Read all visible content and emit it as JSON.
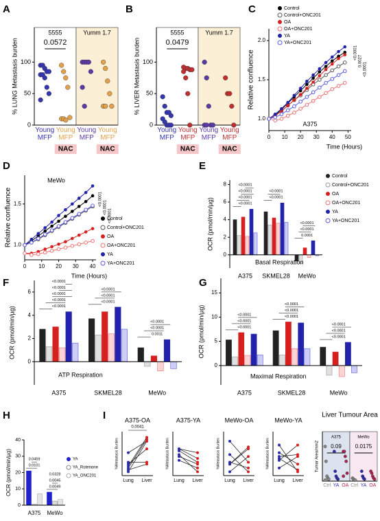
{
  "chart_data": [
    {
      "panel": "A",
      "type": "strip",
      "ylabel": "% LUNG Metastasis burden",
      "categories": [
        "Young MFP",
        "Young MFP",
        "Young MFP",
        "Young MFP"
      ],
      "colors": [
        "#3535b0",
        "#e3a04a",
        "#5a3aa5",
        "#e3a04a"
      ],
      "values": [
        [
          95,
          95,
          90,
          85,
          85,
          80,
          80,
          75,
          60,
          50,
          40
        ],
        [
          95,
          85,
          75,
          60,
          12,
          10,
          10,
          8
        ],
        [
          100,
          100,
          100,
          100,
          85,
          60,
          30
        ],
        [
          100,
          90,
          70,
          50,
          30,
          30,
          30
        ]
      ],
      "group_labels": [
        "5555",
        "Yumm 1.7"
      ],
      "shades": [
        "#ffffff",
        "#fbf0d5"
      ],
      "annotations": [
        "0.0572"
      ],
      "tags": [
        null,
        "NAC",
        null,
        "NAC"
      ],
      "ylim": [
        0,
        155
      ],
      "yticks": [
        0,
        50,
        100
      ]
    },
    {
      "panel": "B",
      "type": "strip",
      "ylabel": "% LIVER Metastasis burden",
      "categories": [
        "Young MFP",
        "Young MFP",
        "Young MFP",
        "Young MFP"
      ],
      "colors": [
        "#3535b0",
        "#c03030",
        "#5a3aa5",
        "#c03030"
      ],
      "values": [
        [
          45,
          30,
          20,
          20,
          15,
          10,
          5,
          0,
          0,
          0
        ],
        [
          92,
          90,
          90,
          88,
          88,
          85,
          75,
          50,
          0
        ],
        [
          100,
          75,
          30,
          0,
          0,
          0,
          0
        ],
        [
          75,
          50,
          50,
          30,
          0
        ]
      ],
      "group_labels": [
        "5555",
        "Yumm 1.7"
      ],
      "shades": [
        "#ffffff",
        "#fbf0d5"
      ],
      "annotations": [
        "0.0479"
      ],
      "tags": [
        null,
        "NAC",
        null,
        "NAC"
      ],
      "ylim": [
        0,
        155
      ],
      "yticks": [
        0,
        50,
        100
      ]
    },
    {
      "panel": "C",
      "type": "line",
      "ylabel": "Relative confluence",
      "xlabel": "Time (Hours)",
      "subtitle": "A375",
      "x": [
        0,
        4,
        8,
        12,
        16,
        20,
        24,
        28,
        32,
        36,
        40,
        44,
        48
      ],
      "series": [
        {
          "name": "Control",
          "color": "#000000",
          "marker": "filled",
          "values": [
            1.0,
            1.05,
            1.12,
            1.2,
            1.28,
            1.36,
            1.44,
            1.52,
            1.6,
            1.67,
            1.74,
            1.8,
            1.85
          ]
        },
        {
          "name": "Control+ONC201",
          "color": "#555555",
          "marker": "open",
          "values": [
            1.0,
            1.05,
            1.1,
            1.17,
            1.24,
            1.3,
            1.37,
            1.44,
            1.5,
            1.56,
            1.62,
            1.67,
            1.72
          ]
        },
        {
          "name": "OA",
          "color": "#d62020",
          "marker": "filled",
          "values": [
            1.0,
            1.04,
            1.1,
            1.17,
            1.24,
            1.31,
            1.39,
            1.47,
            1.55,
            1.63,
            1.7,
            1.77,
            1.82
          ]
        },
        {
          "name": "OA+ONC201",
          "color": "#ee7070",
          "marker": "open",
          "values": [
            1.0,
            0.98,
            1.0,
            1.04,
            1.08,
            1.13,
            1.18,
            1.23,
            1.28,
            1.33,
            1.38,
            1.42,
            1.46
          ]
        },
        {
          "name": "YA",
          "color": "#2222aa",
          "marker": "filled",
          "values": [
            1.0,
            1.06,
            1.13,
            1.21,
            1.3,
            1.39,
            1.48,
            1.56,
            1.64,
            1.72,
            1.79,
            1.86,
            1.92
          ]
        },
        {
          "name": "YA+ONC201",
          "color": "#5a5ae0",
          "marker": "open",
          "values": [
            1.0,
            1.02,
            1.06,
            1.11,
            1.16,
            1.22,
            1.28,
            1.34,
            1.4,
            1.46,
            1.51,
            1.56,
            1.61
          ]
        }
      ],
      "annotations": [
        "<0.0001",
        "0.0027",
        "<0.0001"
      ],
      "xlim": [
        0,
        52
      ],
      "xticks": [
        0,
        10,
        20,
        30,
        40,
        50
      ],
      "ylim": [
        0.85,
        2.15
      ],
      "yticks": [
        {
          "value": 1,
          "label": "1.0"
        },
        1.5,
        {
          "value": 2,
          "label": "2.0"
        }
      ]
    },
    {
      "panel": "D",
      "type": "line",
      "ylabel": "Relative confluence",
      "xlabel": "Time (Hours)",
      "subtitle": "MeWo",
      "x": [
        0,
        4,
        8,
        12,
        16,
        20,
        24,
        28,
        32,
        36,
        40
      ],
      "series": [
        {
          "name": "Control",
          "color": "#000000",
          "marker": "filled",
          "values": [
            1.0,
            1.05,
            1.11,
            1.17,
            1.23,
            1.29,
            1.35,
            1.41,
            1.47,
            1.53,
            1.6
          ]
        },
        {
          "name": "Control+ONC201",
          "color": "#555555",
          "marker": "open",
          "values": [
            1.0,
            1.03,
            1.07,
            1.12,
            1.17,
            1.22,
            1.27,
            1.32,
            1.37,
            1.42,
            1.47
          ]
        },
        {
          "name": "OA",
          "color": "#d62020",
          "marker": "filled",
          "values": [
            0.9,
            0.9,
            0.92,
            0.95,
            0.98,
            1.01,
            1.04,
            1.08,
            1.12,
            1.16,
            1.2
          ]
        },
        {
          "name": "OA+ONC201",
          "color": "#ee7070",
          "marker": "open",
          "values": [
            0.9,
            0.88,
            0.89,
            0.91,
            0.93,
            0.95,
            0.97,
            0.99,
            1.01,
            1.03,
            1.05
          ]
        },
        {
          "name": "YA",
          "color": "#2222aa",
          "marker": "filled",
          "values": [
            1.0,
            1.07,
            1.14,
            1.21,
            1.28,
            1.36,
            1.43,
            1.5,
            1.57,
            1.64,
            1.72
          ]
        },
        {
          "name": "YA+ONC201",
          "color": "#5a5ae0",
          "marker": "open",
          "values": [
            1.0,
            1.03,
            1.08,
            1.13,
            1.18,
            1.23,
            1.28,
            1.33,
            1.38,
            1.43,
            1.48
          ]
        }
      ],
      "annotations": [
        "<0.0001",
        "<0.0001",
        "<0.0001"
      ],
      "xlim": [
        0,
        42
      ],
      "xticks": [
        0,
        10,
        20,
        30,
        40
      ],
      "ylim": [
        0.82,
        1.85
      ],
      "yticks": [
        {
          "value": 1,
          "label": "1.0"
        },
        1.5
      ]
    },
    {
      "panel": "E",
      "type": "bar",
      "ylabel": "OCR (pmol/min/µg)",
      "subtitle": "Basal Respiration",
      "categories": [
        "A375",
        "SKMEL28",
        "MeWo"
      ],
      "series": [
        {
          "name": "Control",
          "color": "#222222",
          "marker": "filled",
          "values": [
            4.0,
            4.9,
            -0.7
          ]
        },
        {
          "name": "Control+ONC201",
          "color": "#999999",
          "marker": "open",
          "values": [
            2.2,
            3.4,
            -1.0
          ]
        },
        {
          "name": "OA",
          "color": "#d62020",
          "marker": "filled",
          "values": [
            4.3,
            4.2,
            0.8
          ]
        },
        {
          "name": "OA+ONC201",
          "color": "#ee7070",
          "marker": "open",
          "values": [
            2.1,
            3.6,
            -0.3
          ]
        },
        {
          "name": "YA",
          "color": "#2222aa",
          "marker": "filled",
          "values": [
            5.2,
            5.9,
            1.6
          ]
        },
        {
          "name": "YA+ONC201",
          "color": "#5a5ae0",
          "marker": "open",
          "values": [
            2.5,
            3.7,
            -0.1
          ]
        }
      ],
      "annotations": [
        [
          "<0.0001",
          "<0.0001",
          "<0.0001",
          "<0.0001"
        ],
        [
          "<0.0001",
          "<0.0001"
        ],
        [
          "0.0001",
          "<0.0001",
          "<0.0001"
        ]
      ],
      "ylim": [
        -1.5,
        8.5
      ],
      "yticks": [
        0,
        2,
        4,
        6,
        8
      ]
    },
    {
      "panel": "F",
      "type": "bar",
      "ylabel": "OCR (pmol/min/µg)",
      "subtitle": "ATP Respiration",
      "categories": [
        "A375",
        "SKMEL28",
        "MeWo"
      ],
      "series": [
        {
          "name": "Control",
          "color": "#222222",
          "marker": "filled",
          "values": [
            2.8,
            3.7,
            1.2
          ]
        },
        {
          "name": "Control+ONC201",
          "color": "#999999",
          "marker": "open",
          "values": [
            1.3,
            2.3,
            -0.4
          ]
        },
        {
          "name": "OA",
          "color": "#d62020",
          "marker": "filled",
          "values": [
            3.0,
            4.3,
            0.5
          ]
        },
        {
          "name": "OA+ONC201",
          "color": "#ee7070",
          "marker": "open",
          "values": [
            1.2,
            2.4,
            -0.8
          ]
        },
        {
          "name": "YA",
          "color": "#2222aa",
          "marker": "filled",
          "values": [
            4.3,
            4.7,
            1.9
          ]
        },
        {
          "name": "YA+ONC201",
          "color": "#5a5ae0",
          "marker": "open",
          "values": [
            1.6,
            2.8,
            -0.6
          ]
        }
      ],
      "annotations": [
        [
          "<0.0001",
          "<0.0001",
          "<0.0001",
          "<0.0001",
          "<0.0001"
        ],
        [
          "<0.0001",
          "<0.0001",
          "<0.0001"
        ],
        [
          "0.0011",
          "<0.0001",
          "<0.0001"
        ]
      ],
      "ylim": [
        -2,
        7
      ],
      "yticks": [
        0,
        2,
        4,
        6
      ]
    },
    {
      "panel": "G",
      "type": "bar",
      "ylabel": "OCR (pmol/min/µg)",
      "subtitle": "Maximal Respiration",
      "categories": [
        "A375",
        "SKMEL28",
        "MeWo"
      ],
      "series": [
        {
          "name": "Control",
          "color": "#222222",
          "marker": "filled",
          "values": [
            5.3,
            7.2,
            3.8
          ]
        },
        {
          "name": "Control+ONC201",
          "color": "#999999",
          "marker": "open",
          "values": [
            1.8,
            2.2,
            -2.0
          ]
        },
        {
          "name": "OA",
          "color": "#d62020",
          "marker": "filled",
          "values": [
            6.8,
            9.0,
            2.8
          ]
        },
        {
          "name": "OA+ONC201",
          "color": "#ee7070",
          "marker": "open",
          "values": [
            2.1,
            3.5,
            -2.3
          ]
        },
        {
          "name": "YA",
          "color": "#2222aa",
          "marker": "filled",
          "values": [
            6.5,
            8.8,
            4.8
          ]
        },
        {
          "name": "YA+ONC201",
          "color": "#5a5ae0",
          "marker": "open",
          "values": [
            2.2,
            3.5,
            -1.5
          ]
        }
      ],
      "annotations": [
        [
          "<0.0001",
          "<0.0001",
          "<0.0001"
        ],
        [
          "<0.0001",
          "<0.0001",
          "<0.0001"
        ],
        [
          "<0.0001",
          "<0.0001",
          "<0.0001"
        ]
      ],
      "ylim": [
        -4,
        18
      ],
      "yticks": [
        0,
        5,
        10,
        15
      ]
    },
    {
      "panel": "H",
      "type": "bar",
      "ylabel": "OCR (pmol/min/µg)",
      "categories": [
        "A375",
        "MeWo"
      ],
      "series": [
        {
          "name": "YA",
          "color": "#2222cc",
          "marker": "filled",
          "values": [
            21,
            8
          ]
        },
        {
          "name": "YA_Rotenone",
          "color": "#888888",
          "marker": "open",
          "values": [
            0.5,
            2.5
          ]
        },
        {
          "name": "YA_ONC201",
          "color": "#aaaaaa",
          "marker": "open",
          "values": [
            7,
            3.5
          ]
        }
      ],
      "annotations": [
        [
          "0.0101",
          "0.0459"
        ],
        [
          "0.0049",
          "0.0045",
          "0.0328"
        ]
      ],
      "ylim": [
        0,
        40
      ],
      "yticks": [
        0,
        10,
        20,
        30,
        40
      ]
    },
    {
      "panel": "I",
      "type": "paired",
      "title": "A375-OA",
      "title_color": "#d62020",
      "ylabel": "%Metastasis Burden",
      "categories": [
        "Lung",
        "Liver"
      ],
      "colors": [
        "#2a2ab0",
        "#d62020"
      ],
      "annotation": "0.0041",
      "series": [
        {
          "values": [
            20,
            95
          ]
        },
        {
          "values": [
            10,
            90
          ]
        },
        {
          "values": [
            30,
            70
          ]
        },
        {
          "values": [
            60,
            90
          ]
        },
        {
          "values": [
            25,
            100
          ]
        },
        {
          "values": [
            35,
            35
          ]
        },
        {
          "values": [
            15,
            30
          ]
        }
      ],
      "ylim": [
        0,
        115
      ]
    },
    {
      "type": "paired",
      "title": "A375-YA",
      "title_color": "#2a6ab0",
      "ylabel": "%Metastasis Burden",
      "categories": [
        "Lung",
        "Liver"
      ],
      "colors": [
        "#2a2ab0",
        "#d62020"
      ],
      "series": [
        {
          "values": [
            65,
            35
          ]
        },
        {
          "values": [
            70,
            60
          ]
        },
        {
          "values": [
            50,
            30
          ]
        },
        {
          "values": [
            55,
            10
          ]
        },
        {
          "values": [
            70,
            45
          ]
        },
        {
          "values": [
            40,
            20
          ]
        }
      ],
      "ylim": [
        0,
        115
      ]
    },
    {
      "type": "paired",
      "title": "MeWo-OA",
      "title_color": "#d62020",
      "ylabel": "%Metastasis Burden",
      "categories": [
        "Lung",
        "Liver"
      ],
      "colors": [
        "#2a2ab0",
        "#d62020"
      ],
      "series": [
        {
          "values": [
            30,
            75
          ]
        },
        {
          "values": [
            90,
            35
          ]
        },
        {
          "values": [
            30,
            70
          ]
        },
        {
          "values": [
            10,
            50
          ]
        },
        {
          "values": [
            55,
            10
          ]
        },
        {
          "values": [
            35,
            20
          ]
        }
      ],
      "ylim": [
        0,
        115
      ]
    },
    {
      "type": "paired",
      "title": "MeWo-YA",
      "title_color": "#2a6ab0",
      "ylabel": "%Metastasis Burden",
      "categories": [
        "Lung",
        "Liver"
      ],
      "colors": [
        "#2a2ab0",
        "#d62020"
      ],
      "series": [
        {
          "values": [
            50,
            55
          ]
        },
        {
          "values": [
            60,
            30
          ]
        },
        {
          "values": [
            80,
            10
          ]
        },
        {
          "values": [
            20,
            50
          ]
        },
        {
          "values": [
            40,
            80
          ]
        },
        {
          "values": [
            45,
            15
          ]
        }
      ],
      "ylim": [
        0,
        115
      ]
    },
    {
      "type": "strip",
      "title": "Liver Tumour Area",
      "ylabel": "Tumor Area/mm2",
      "categories": [
        "Ctrl",
        "YA",
        "OA",
        "Ctrl",
        "YA",
        "OA"
      ],
      "colors": [
        "#888888",
        "#2a2ab0",
        "#b02050",
        "#888888",
        "#2a2ab0",
        "#b02050"
      ],
      "values": [
        [
          35,
          20,
          5,
          3,
          2,
          1
        ],
        [
          30,
          10,
          5,
          3,
          2
        ],
        [
          30,
          30,
          25,
          20,
          8,
          5
        ],
        [
          3,
          2,
          1,
          1
        ],
        [
          10,
          5,
          3,
          2
        ],
        [
          10,
          8,
          5,
          3,
          2
        ]
      ],
      "group_labels": [
        "A375",
        "MeWo"
      ],
      "shades": [
        "#dde3ee",
        "#f7e8f2"
      ],
      "annotations": [
        "0.09",
        "0.0175"
      ],
      "ylim": [
        0,
        50
      ]
    }
  ]
}
